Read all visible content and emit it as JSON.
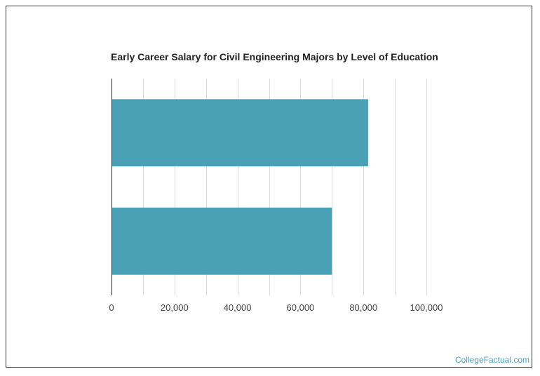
{
  "chart_data": {
    "type": "bar",
    "orientation": "horizontal",
    "title": "Early Career Salary for Civil Engineering Majors by Level of Education",
    "categories": [
      "",
      ""
    ],
    "values": [
      81500,
      70000
    ],
    "xlim": [
      0,
      100000
    ],
    "x_ticks": [
      0,
      20000,
      40000,
      60000,
      80000,
      100000
    ],
    "x_tick_labels": [
      "0",
      "20,000",
      "40,000",
      "60,000",
      "80,000",
      "100,000"
    ],
    "minor_gridlines": true,
    "grid": true,
    "bar_color": "#4aa0b5",
    "grid_color": "#dddddd"
  },
  "credit": "CollegeFactual.com"
}
